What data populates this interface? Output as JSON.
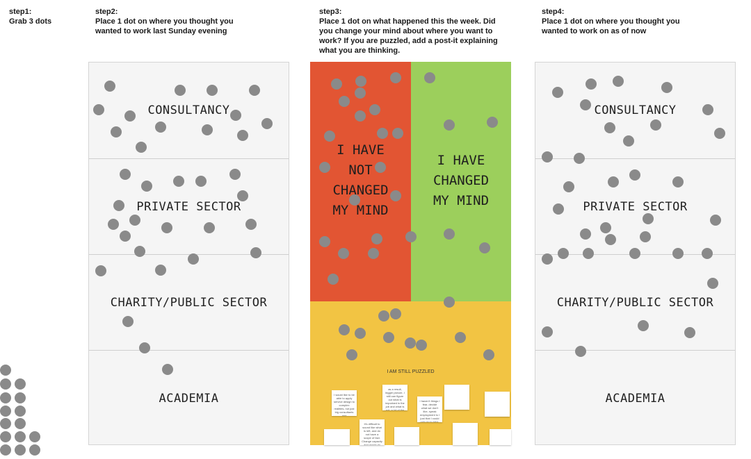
{
  "steps": [
    {
      "title": "step1:",
      "desc": "Grab 3 dots"
    },
    {
      "title": "step2:",
      "desc": "Place 1 dot on where you thought you wanted to work last Sunday evening"
    },
    {
      "title": "step3:",
      "desc": "Place 1 dot on what happened this the week. Did you change your mind about where you want to work? If you are puzzled, add a post-it explaining what you are thinking."
    },
    {
      "title": "step4:",
      "desc": "Place 1 dot on where you thought you wanted to work on as of now"
    }
  ],
  "left_board": {
    "zones": [
      "CONSULTANCY",
      "PRIVATE SECTOR",
      "CHARITY/PUBLIC SECTOR",
      "ACADEMIA"
    ]
  },
  "right_board": {
    "zones": [
      "CONSULTANCY",
      "PRIVATE SECTOR",
      "CHARITY/PUBLIC SECTOR",
      "ACADEMIA"
    ]
  },
  "middle_board": {
    "not_changed": "I HAVE\nNOT\nCHANGED\nMY MIND",
    "changed": "I HAVE\nCHANGED\nMY MIND",
    "puzzled": "I AM STILL PUZZLED",
    "postits": [
      "I would like to be able to apply service design to complex realities, not just big consultants and commitments.",
      "as a result, bigger picture, I still can figure out what is important in the job and what is not, a lot of the excellent clients' design are the same things.",
      "I haven't things I fear, decide what we don't like, speak employment is I just that I could only go to take, but the most creative parts is I am working in as an examples.",
      "It's difficult to sound like what is left, and do not have a scope of fact. Change capacity and would do and request hands. Service design is a place to run into.",
      "",
      "",
      "",
      "",
      "",
      ""
    ]
  },
  "colors": {
    "red": "#e25533",
    "green": "#9ccf5c",
    "yellow": "#f2c443",
    "dot": "#8a8a8a"
  }
}
